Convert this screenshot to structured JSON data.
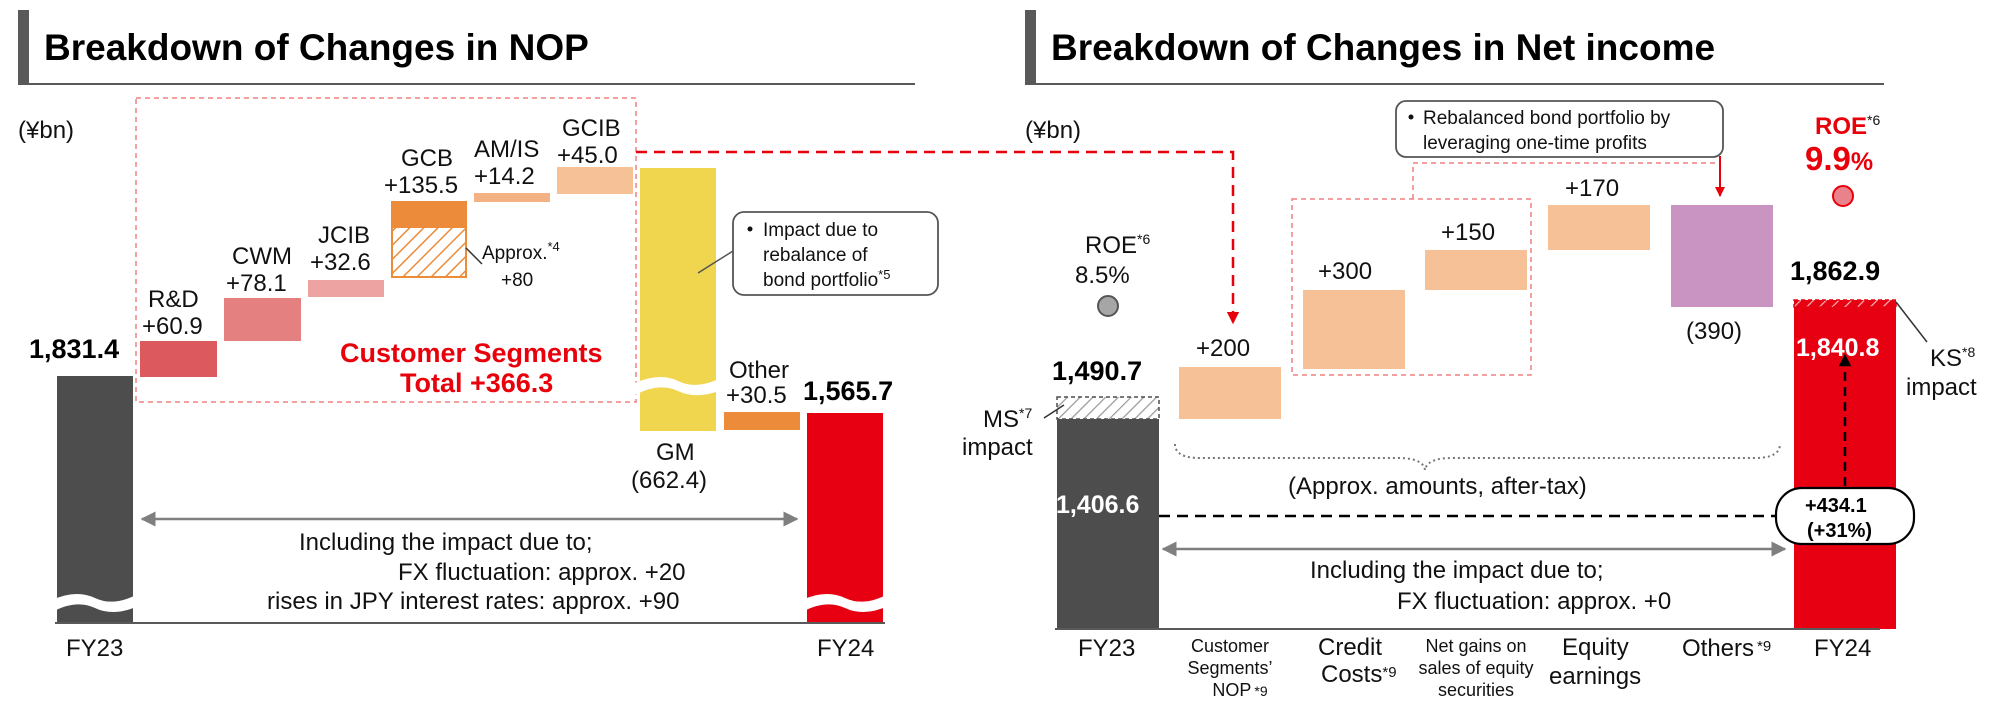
{
  "colors": {
    "dark": "#4d4d4d",
    "red": "#e60012",
    "rd": "#dc5a5e",
    "cwm": "#e58080",
    "jcib": "#eea3a3",
    "gcb": "#ec8b3a",
    "amis": "#f4b183",
    "gcib": "#f6c197",
    "gm": "#f0d54e",
    "other": "#ec8b3a",
    "salmon": "#f6c197",
    "purple": "#c994c1",
    "accent_red": "#e8000b",
    "roe_dot": "#e9828a",
    "roe_grey": "#a6a6a6"
  },
  "left": {
    "title": "Breakdown of Changes in NOP",
    "unit": "(¥bn)",
    "segments_label_1": "Customer Segments",
    "segments_label_2": "Total +366.3",
    "gm_callout": [
      "Impact due to",
      "rebalance of",
      "bond portfolio"
    ],
    "gm_callout_sup": "*5",
    "approx_label": "Approx.",
    "approx_sup": "*4",
    "approx_value": "+80",
    "including": [
      "Including the impact due to;",
      "FX fluctuation: approx. +20",
      "rises in JPY interest rates: approx. +90"
    ],
    "axis_left": "FY23",
    "axis_right": "FY24"
  },
  "right": {
    "title": "Breakdown of Changes in Net income",
    "unit": "(¥bn)",
    "roe_fy23_label": "ROE",
    "roe_fy23_sup": "*6",
    "roe_fy23": "8.5%",
    "roe_fy24_label": "ROE",
    "roe_fy24_sup": "*6",
    "roe_fy24_num": "9.9",
    "roe_fy24_pct": "%",
    "bond_callout": [
      "Rebalanced bond portfolio by",
      "leveraging one-time profits"
    ],
    "ms_label": [
      "MS",
      "impact"
    ],
    "ms_sup": "*7",
    "ks_label": [
      "KS",
      "impact"
    ],
    "ks_sup": "*8",
    "approx_amounts": "(Approx. amounts, after-tax)",
    "growth": [
      "+434.1",
      "(+31%)"
    ],
    "including": [
      "Including the impact due to;",
      "FX fluctuation: approx. +0"
    ],
    "axis": {
      "fy23": "FY23",
      "cust": [
        "Customer",
        "Segments’",
        "NOP"
      ],
      "cust_sup": "*9",
      "credit": [
        "Credit",
        "Costs"
      ],
      "credit_sup": "*9",
      "netgains": [
        "Net gains on",
        "sales of equity",
        "securities"
      ],
      "equity": [
        "Equity",
        "earnings"
      ],
      "others": "Others",
      "others_sup": "*9",
      "fy24": "FY24"
    }
  },
  "chart_data": [
    {
      "type": "bar",
      "subtype": "waterfall",
      "title": "Breakdown of Changes in NOP",
      "unit": "¥bn",
      "categories": [
        "FY23",
        "R&D",
        "CWM",
        "JCIB",
        "GCB",
        "AM/IS",
        "GCIB",
        "GM",
        "Other",
        "FY24"
      ],
      "values": [
        1831.4,
        60.9,
        78.1,
        32.6,
        135.5,
        14.2,
        45.0,
        -662.4,
        30.5,
        1565.7
      ],
      "labels": [
        "1,831.4",
        "+60.9",
        "+78.1",
        "+32.6",
        "+135.5",
        "+14.2",
        "+45.0",
        "(662.4)",
        "+30.5",
        "1,565.7"
      ],
      "customer_segments_total": 366.3,
      "gcb_approx_impact": 80,
      "fx_impact_approx": 20,
      "jpy_rate_impact_approx": 90
    },
    {
      "type": "bar",
      "subtype": "waterfall",
      "title": "Breakdown of Changes in Net income",
      "unit": "¥bn",
      "categories": [
        "FY23",
        "Customer Segments' NOP",
        "Credit Costs",
        "Net gains on sales of equity securities",
        "Equity earnings",
        "Others",
        "FY24"
      ],
      "values": [
        1490.7,
        200,
        300,
        150,
        170,
        -390,
        1862.9
      ],
      "labels": [
        "1,490.7",
        "+200",
        "+300",
        "+150",
        "+170",
        "(390)",
        "1,862.9"
      ],
      "fy23_excl_ms": 1406.6,
      "fy23_excl_ms_label": "1,406.6",
      "fy24_excl_ks": 1840.8,
      "fy24_excl_ks_label": "1,840.8",
      "growth": 434.1,
      "growth_pct": 31,
      "roe_fy23_pct": 8.5,
      "roe_fy24_pct": 9.9,
      "fx_impact_approx": 0
    }
  ]
}
